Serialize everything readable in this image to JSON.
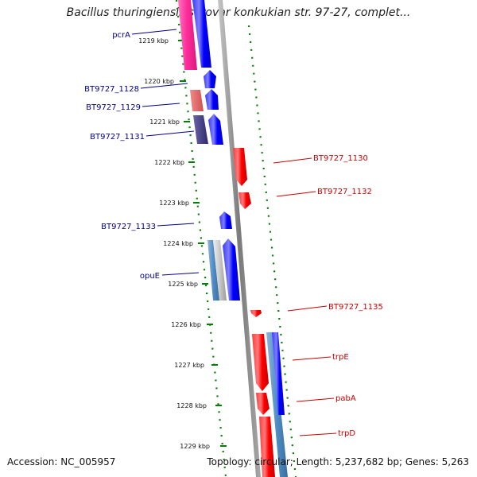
{
  "title": "Bacillus thuringiensis serovar konkukian str. 97-27, complet...",
  "footer": {
    "accession": "Accession: NC_005957",
    "summary": "Topology: circular; Length: 5,237,682 bp; Genes: 5,263"
  },
  "colors": {
    "forward_label": "#00008b",
    "reverse_label": "#cc0000",
    "tick": "#008000",
    "backbone": "#8c8c8c"
  },
  "ticks": [
    "1219 kbp",
    "1220 kbp",
    "1221 kbp",
    "1222 kbp",
    "1223 kbp",
    "1224 kbp",
    "1225 kbp",
    "1226 kbp",
    "1227 kbp",
    "1228 kbp",
    "1229 kbp"
  ],
  "forward_labels": [
    "pcrA",
    "BT9727_1128",
    "BT9727_1129",
    "BT9727_1131",
    "BT9727_1133",
    "opuE"
  ],
  "reverse_labels": [
    "BT9727_1130",
    "BT9727_1132",
    "BT9727_1135",
    "trpE",
    "pabA",
    "trpD"
  ]
}
